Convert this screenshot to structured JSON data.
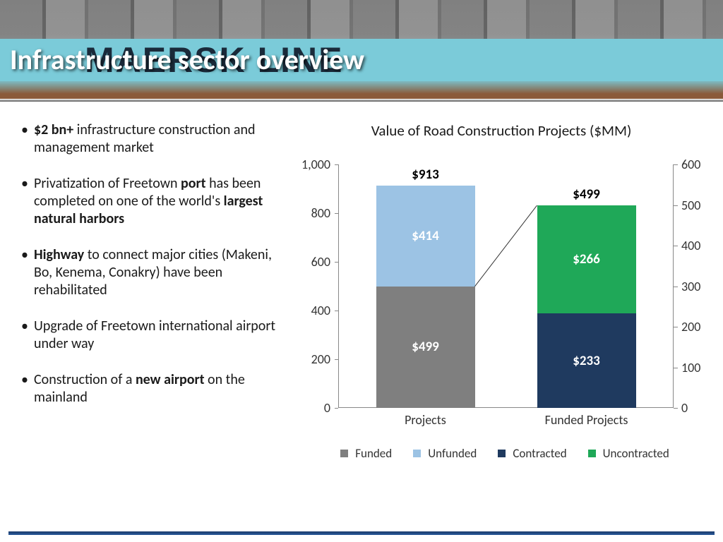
{
  "header": {
    "title": "Infrastructure sector overview",
    "bg_text": "MAERSK LINE"
  },
  "bullets": [
    {
      "pre": "",
      "b1": "$2 bn+",
      "mid": " infrastructure construction and management market",
      "b2": "",
      "post": ""
    },
    {
      "pre": "Privatization of Freetown ",
      "b1": "port",
      "mid": " has been completed on one of the world's ",
      "b2": "largest natural harbors",
      "post": ""
    },
    {
      "pre": "",
      "b1": "Highway",
      "mid": " to connect major cities (Makeni, Bo, Kenema, Conakry) have been rehabilitated",
      "b2": "",
      "post": ""
    },
    {
      "pre": "Upgrade of Freetown international airport under way",
      "b1": "",
      "mid": "",
      "b2": "",
      "post": ""
    },
    {
      "pre": "Construction of a ",
      "b1": "new airport",
      "mid": " on the mainland",
      "b2": "",
      "post": ""
    }
  ],
  "chart": {
    "title": "Value of Road Construction Projects ($MM)",
    "left_axis": {
      "max": 1000,
      "ticks": [
        0,
        200,
        400,
        600,
        800,
        1000
      ]
    },
    "right_axis": {
      "max": 600,
      "ticks": [
        0,
        100,
        200,
        300,
        400,
        500,
        600
      ]
    },
    "bar1": {
      "x_label": "Projects",
      "total_label": "$913",
      "segs": [
        {
          "label": "$499",
          "value": 499,
          "color": "#7f7f7f"
        },
        {
          "label": "$414",
          "value": 414,
          "color": "#9cc3e4"
        }
      ]
    },
    "bar2": {
      "x_label": "Funded Projects",
      "total_label": "$499",
      "segs": [
        {
          "label": "$233",
          "value": 233,
          "color": "#1f3a5f"
        },
        {
          "label": "$266",
          "value": 266,
          "color": "#1fa858"
        }
      ]
    },
    "legend": [
      {
        "label": "Funded",
        "color": "#7f7f7f"
      },
      {
        "label": "Unfunded",
        "color": "#9cc3e4"
      },
      {
        "label": "Contracted",
        "color": "#1f3a5f"
      },
      {
        "label": "Uncontracted",
        "color": "#1fa858"
      }
    ]
  }
}
